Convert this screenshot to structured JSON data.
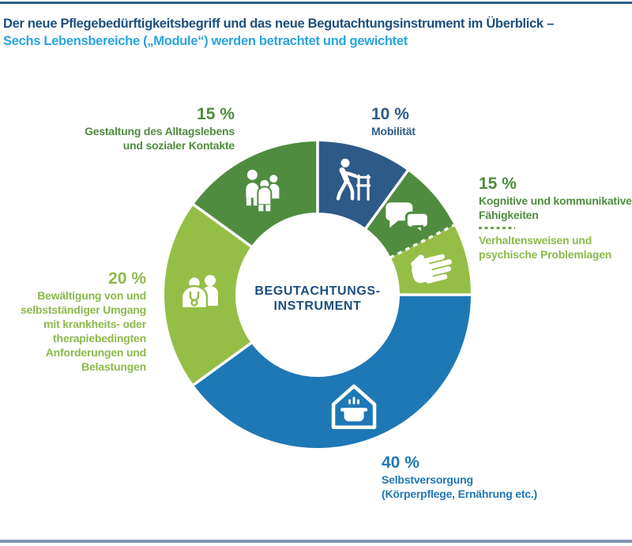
{
  "header": {
    "title_line1": "Der neue Pflegebedürftigkeitsbegriff und das neue Begutachtungsinstrument im Überblick –",
    "title_line2": "Sechs Lebensbereiche („Module“) werden betrachtet und gewichtet"
  },
  "center_label": {
    "line1": "BEGUTACHTUNGS-",
    "line2": "INSTRUMENT"
  },
  "labels": {
    "mobilitaet": {
      "percent": "10 %",
      "lines": [
        "Mobilität"
      ]
    },
    "kognitiv": {
      "percent": "15 %",
      "lines": [
        "Kognitive und kommunikative",
        "Fähigkeiten"
      ],
      "lines2": [
        "Verhaltensweisen und",
        "psychische Problemlagen"
      ]
    },
    "selbstversorgung": {
      "percent": "40 %",
      "lines": [
        "Selbstversorgung",
        "(Körperpflege, Ernährung etc.)"
      ]
    },
    "bewaeltigung": {
      "percent": "20 %",
      "lines": [
        "Bewältigung von und",
        "selbstständiger Umgang",
        "mit krankheits- oder",
        "therapiebedingten",
        "Anforderungen und",
        "Belastungen"
      ]
    },
    "gestaltung": {
      "percent": "15 %",
      "lines": [
        "Gestaltung des Alltagslebens",
        "und sozialer Kontakte"
      ]
    }
  },
  "chart_data": {
    "type": "pie",
    "donut": true,
    "title": "Der neue Pflegebedürftigkeitsbegriff und das neue Begutachtungsinstrument im Überblick – Sechs Lebensbereiche („Module“) werden betrachtet und gewichtet",
    "center_text": "BEGUTACHTUNGS-INSTRUMENT",
    "start_angle_deg": 0,
    "direction": "clockwise",
    "legend_position": "around",
    "segments": [
      {
        "id": "mobilitaet",
        "label": "Mobilität",
        "display_percent": "10 %",
        "value": 10,
        "color": "#2E5A87",
        "icon": "person-with-walker-icon",
        "divider_before": "solid"
      },
      {
        "id": "kognitiv",
        "label": "Kognitive und kommunikative Fähigkeiten",
        "display_percent": "15 %",
        "value": 7.5,
        "color": "#4F8C3F",
        "icon": "speech-bubbles-icon",
        "divider_before": "solid"
      },
      {
        "id": "verhalten",
        "label": "Verhaltensweisen und psychische Problemlagen",
        "display_percent": "15 %",
        "value": 7.5,
        "color": "#95BE47",
        "icon": "hand-icon",
        "divider_before": "dashed"
      },
      {
        "id": "selbstversorgung",
        "label": "Selbstversorgung (Körperpflege, Ernährung etc.)",
        "display_percent": "40 %",
        "value": 40,
        "color": "#1E78B5",
        "icon": "house-cooking-pot-icon",
        "divider_before": "solid"
      },
      {
        "id": "bewaeltigung",
        "label": "Bewältigung von und selbstständiger Umgang mit krankheits- oder therapiebedingten Anforderungen und Belastungen",
        "display_percent": "20 %",
        "value": 20,
        "color": "#95BE47",
        "icon": "doctor-patient-icon",
        "divider_before": "solid"
      },
      {
        "id": "gestaltung",
        "label": "Gestaltung des Alltagslebens und sozialer Kontakte",
        "display_percent": "15 %",
        "value": 15,
        "color": "#4F8C3F",
        "icon": "people-group-icon",
        "divider_before": "solid"
      }
    ]
  },
  "theme": {
    "dark_navy": "#2E5A87",
    "medium_blue": "#1E78B5",
    "medium_green": "#4F8C3F",
    "lime_green": "#95BE47",
    "lime_text": "#8CB94B",
    "title_navy": "#1D4F7E",
    "subtitle_blue": "#29A4DE",
    "top_rule": "#2F5E8C",
    "bottom_rule": "#7E97AE",
    "separator_white": "#FFFFFF"
  }
}
